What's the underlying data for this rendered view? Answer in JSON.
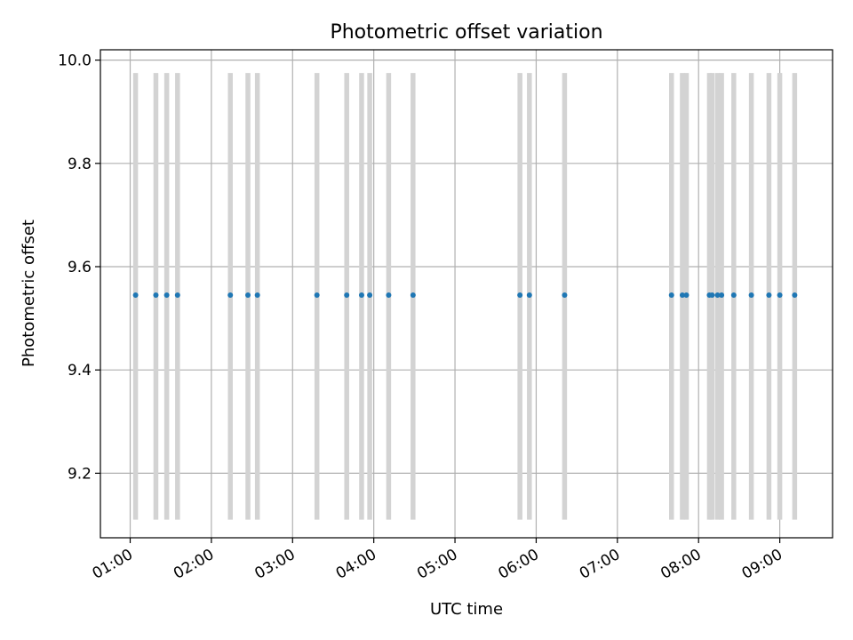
{
  "chart_data": {
    "type": "scatter",
    "title": "Photometric offset variation",
    "xlabel": "UTC time",
    "ylabel": "Photometric offset",
    "x_ticks": [
      "01:00",
      "02:00",
      "03:00",
      "04:00",
      "05:00",
      "06:00",
      "07:00",
      "08:00",
      "09:00"
    ],
    "y_ticks": [
      "9.2",
      "9.4",
      "9.6",
      "9.8",
      "10.0"
    ],
    "xlim": [
      "00:38",
      "09:39"
    ],
    "ylim": [
      9.075,
      10.02
    ],
    "grid": true,
    "band_range": [
      9.11,
      9.975
    ],
    "point_color": "#1f77b4",
    "band_color": "#d3d3d3",
    "points": [
      {
        "x": "01:04",
        "y": 9.545
      },
      {
        "x": "01:19",
        "y": 9.545
      },
      {
        "x": "01:27",
        "y": 9.545
      },
      {
        "x": "01:35",
        "y": 9.545
      },
      {
        "x": "02:14",
        "y": 9.545
      },
      {
        "x": "02:27",
        "y": 9.545
      },
      {
        "x": "02:34",
        "y": 9.545
      },
      {
        "x": "03:18",
        "y": 9.545
      },
      {
        "x": "03:40",
        "y": 9.545
      },
      {
        "x": "03:51",
        "y": 9.545
      },
      {
        "x": "03:57",
        "y": 9.545
      },
      {
        "x": "04:11",
        "y": 9.545
      },
      {
        "x": "04:29",
        "y": 9.545
      },
      {
        "x": "05:48",
        "y": 9.545
      },
      {
        "x": "05:55",
        "y": 9.545
      },
      {
        "x": "06:21",
        "y": 9.545
      },
      {
        "x": "07:40",
        "y": 9.545
      },
      {
        "x": "07:48",
        "y": 9.545
      },
      {
        "x": "07:51",
        "y": 9.545
      },
      {
        "x": "08:08",
        "y": 9.545
      },
      {
        "x": "08:10",
        "y": 9.545
      },
      {
        "x": "08:14",
        "y": 9.545
      },
      {
        "x": "08:17",
        "y": 9.545
      },
      {
        "x": "08:26",
        "y": 9.545
      },
      {
        "x": "08:39",
        "y": 9.545
      },
      {
        "x": "08:52",
        "y": 9.545
      },
      {
        "x": "09:00",
        "y": 9.545
      },
      {
        "x": "09:11",
        "y": 9.545
      }
    ]
  }
}
